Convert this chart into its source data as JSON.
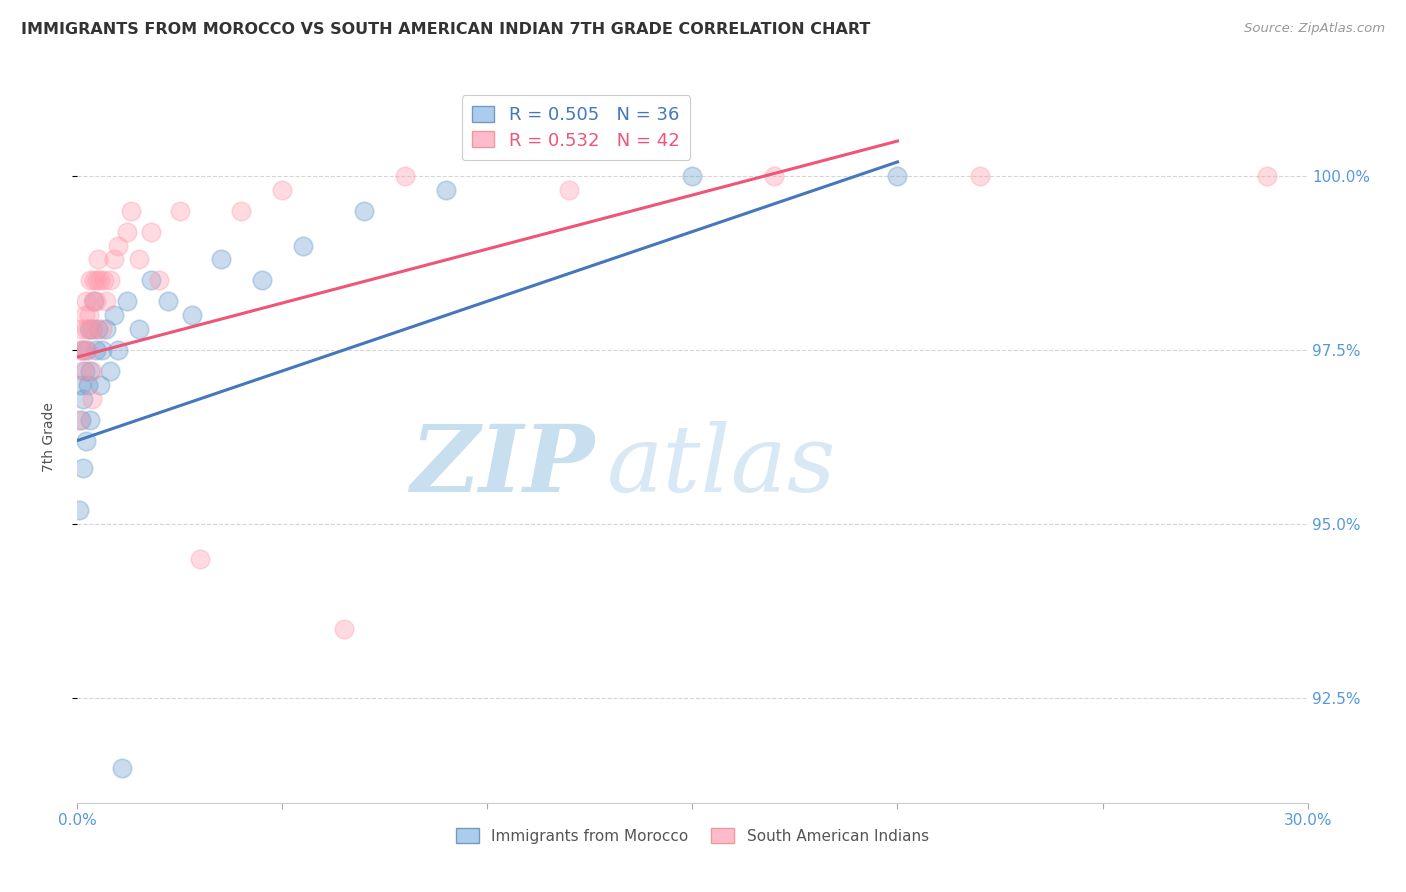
{
  "title": "IMMIGRANTS FROM MOROCCO VS SOUTH AMERICAN INDIAN 7TH GRADE CORRELATION CHART",
  "source": "Source: ZipAtlas.com",
  "ylabel": "7th Grade",
  "y_ticks": [
    92.5,
    95.0,
    97.5,
    100.0
  ],
  "y_tick_labels": [
    "92.5%",
    "95.0%",
    "97.5%",
    "100.0%"
  ],
  "xlim": [
    0.0,
    30.0
  ],
  "ylim": [
    91.0,
    101.5
  ],
  "blue_label": "Immigrants from Morocco",
  "pink_label": "South American Indians",
  "blue_color": "#6699cc",
  "pink_color": "#ff99aa",
  "blue_line_color": "#4477bb",
  "pink_line_color": "#ee5577",
  "blue_r": 0.505,
  "blue_n": 36,
  "pink_r": 0.532,
  "pink_n": 42,
  "watermark_zip": "ZIP",
  "watermark_atlas": "atlas",
  "watermark_color_zip": "#c8dff0",
  "watermark_color_atlas": "#d8e8f5",
  "blue_x": [
    0.05,
    0.08,
    0.1,
    0.12,
    0.13,
    0.15,
    0.18,
    0.2,
    0.22,
    0.25,
    0.28,
    0.3,
    0.32,
    0.35,
    0.4,
    0.45,
    0.5,
    0.55,
    0.6,
    0.7,
    0.8,
    0.9,
    1.0,
    1.2,
    1.5,
    1.8,
    2.2,
    2.8,
    3.5,
    4.5,
    5.5,
    7.0,
    9.0,
    15.0,
    20.0,
    1.1
  ],
  "blue_y": [
    95.2,
    96.5,
    97.0,
    97.5,
    95.8,
    96.8,
    97.2,
    97.5,
    96.2,
    97.0,
    97.8,
    97.2,
    96.5,
    97.8,
    98.2,
    97.5,
    97.8,
    97.0,
    97.5,
    97.8,
    97.2,
    98.0,
    97.5,
    98.2,
    97.8,
    98.5,
    98.2,
    98.0,
    98.8,
    98.5,
    99.0,
    99.5,
    99.8,
    100.0,
    100.0,
    91.5
  ],
  "pink_x": [
    0.05,
    0.08,
    0.1,
    0.12,
    0.15,
    0.18,
    0.2,
    0.22,
    0.25,
    0.28,
    0.3,
    0.32,
    0.35,
    0.38,
    0.4,
    0.42,
    0.45,
    0.48,
    0.5,
    0.55,
    0.6,
    0.65,
    0.7,
    0.8,
    0.9,
    1.0,
    1.2,
    1.5,
    1.8,
    2.0,
    2.5,
    3.0,
    4.0,
    5.0,
    6.5,
    8.0,
    12.0,
    17.0,
    22.0,
    29.0,
    0.35,
    1.3
  ],
  "pink_y": [
    96.5,
    97.5,
    97.8,
    97.2,
    97.5,
    98.0,
    97.8,
    98.2,
    97.5,
    98.0,
    97.8,
    98.5,
    97.2,
    98.2,
    98.5,
    97.8,
    98.2,
    98.5,
    98.8,
    98.5,
    97.8,
    98.5,
    98.2,
    98.5,
    98.8,
    99.0,
    99.2,
    98.8,
    99.2,
    98.5,
    99.5,
    94.5,
    99.5,
    99.8,
    93.5,
    100.0,
    99.8,
    100.0,
    100.0,
    100.0,
    96.8,
    99.5
  ],
  "blue_line_x0": 0.0,
  "blue_line_y0": 96.2,
  "blue_line_x1": 20.0,
  "blue_line_y1": 100.2,
  "pink_line_x0": 0.0,
  "pink_line_y0": 97.4,
  "pink_line_x1": 20.0,
  "pink_line_y1": 100.5
}
